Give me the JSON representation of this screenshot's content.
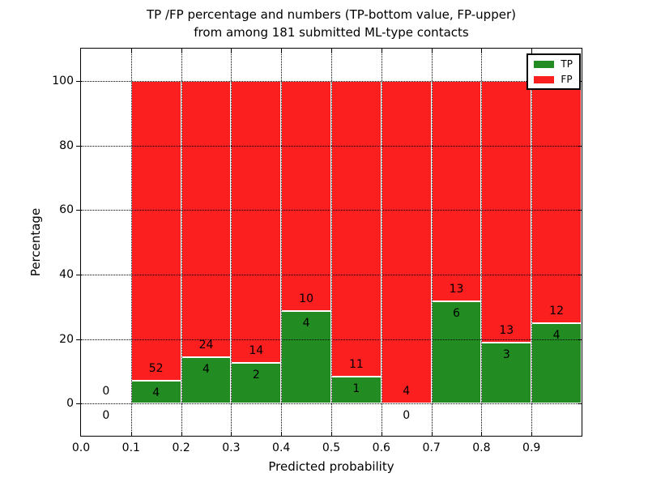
{
  "title": {
    "line1": "TP /FP percentage and numbers (TP-bottom value, FP-upper)",
    "line2": "from among 181 submitted ML-type contacts"
  },
  "axes": {
    "xlabel": "Predicted probability",
    "ylabel": "Percentage",
    "xtick_labels": [
      "0.0",
      "0.1",
      "0.2",
      "0.3",
      "0.4",
      "0.5",
      "0.6",
      "0.7",
      "0.8",
      "0.9"
    ],
    "ytick_labels": [
      "0",
      "20",
      "40",
      "60",
      "80",
      "100"
    ],
    "xlim": [
      0.0,
      1.0
    ],
    "ylim": [
      -10,
      110
    ],
    "grid_style": "dotted"
  },
  "legend": {
    "position": "upper-right",
    "items": [
      {
        "label": "TP",
        "color": "#228b22"
      },
      {
        "label": "FP",
        "color": "#fb1f1f"
      }
    ]
  },
  "chart_data": {
    "type": "bar",
    "stacked": true,
    "normalized_to": 100,
    "total_contacts": 181,
    "bin_width": 0.1,
    "colors": {
      "tp": "#228b22",
      "fp": "#fb1f1f",
      "bar_edge": "#ffffff"
    },
    "bins": [
      {
        "range": [
          0.0,
          0.1
        ],
        "tp": 0,
        "fp": 0,
        "tp_pct": 0,
        "fp_pct": 0
      },
      {
        "range": [
          0.1,
          0.2
        ],
        "tp": 4,
        "fp": 52,
        "tp_pct": 7.14,
        "fp_pct": 92.86
      },
      {
        "range": [
          0.2,
          0.3
        ],
        "tp": 4,
        "fp": 24,
        "tp_pct": 14.29,
        "fp_pct": 85.71
      },
      {
        "range": [
          0.3,
          0.4
        ],
        "tp": 2,
        "fp": 14,
        "tp_pct": 12.5,
        "fp_pct": 87.5
      },
      {
        "range": [
          0.4,
          0.5
        ],
        "tp": 4,
        "fp": 10,
        "tp_pct": 28.57,
        "fp_pct": 71.43
      },
      {
        "range": [
          0.5,
          0.6
        ],
        "tp": 1,
        "fp": 11,
        "tp_pct": 8.33,
        "fp_pct": 91.67
      },
      {
        "range": [
          0.6,
          0.7
        ],
        "tp": 0,
        "fp": 4,
        "tp_pct": 0,
        "fp_pct": 100
      },
      {
        "range": [
          0.7,
          0.8
        ],
        "tp": 6,
        "fp": 13,
        "tp_pct": 31.58,
        "fp_pct": 68.42
      },
      {
        "range": [
          0.8,
          0.9
        ],
        "tp": 3,
        "fp": 13,
        "tp_pct": 18.75,
        "fp_pct": 81.25
      },
      {
        "range": [
          0.9,
          1.0
        ],
        "tp": 4,
        "fp": 12,
        "tp_pct": 25.0,
        "fp_pct": 75.0
      }
    ]
  }
}
